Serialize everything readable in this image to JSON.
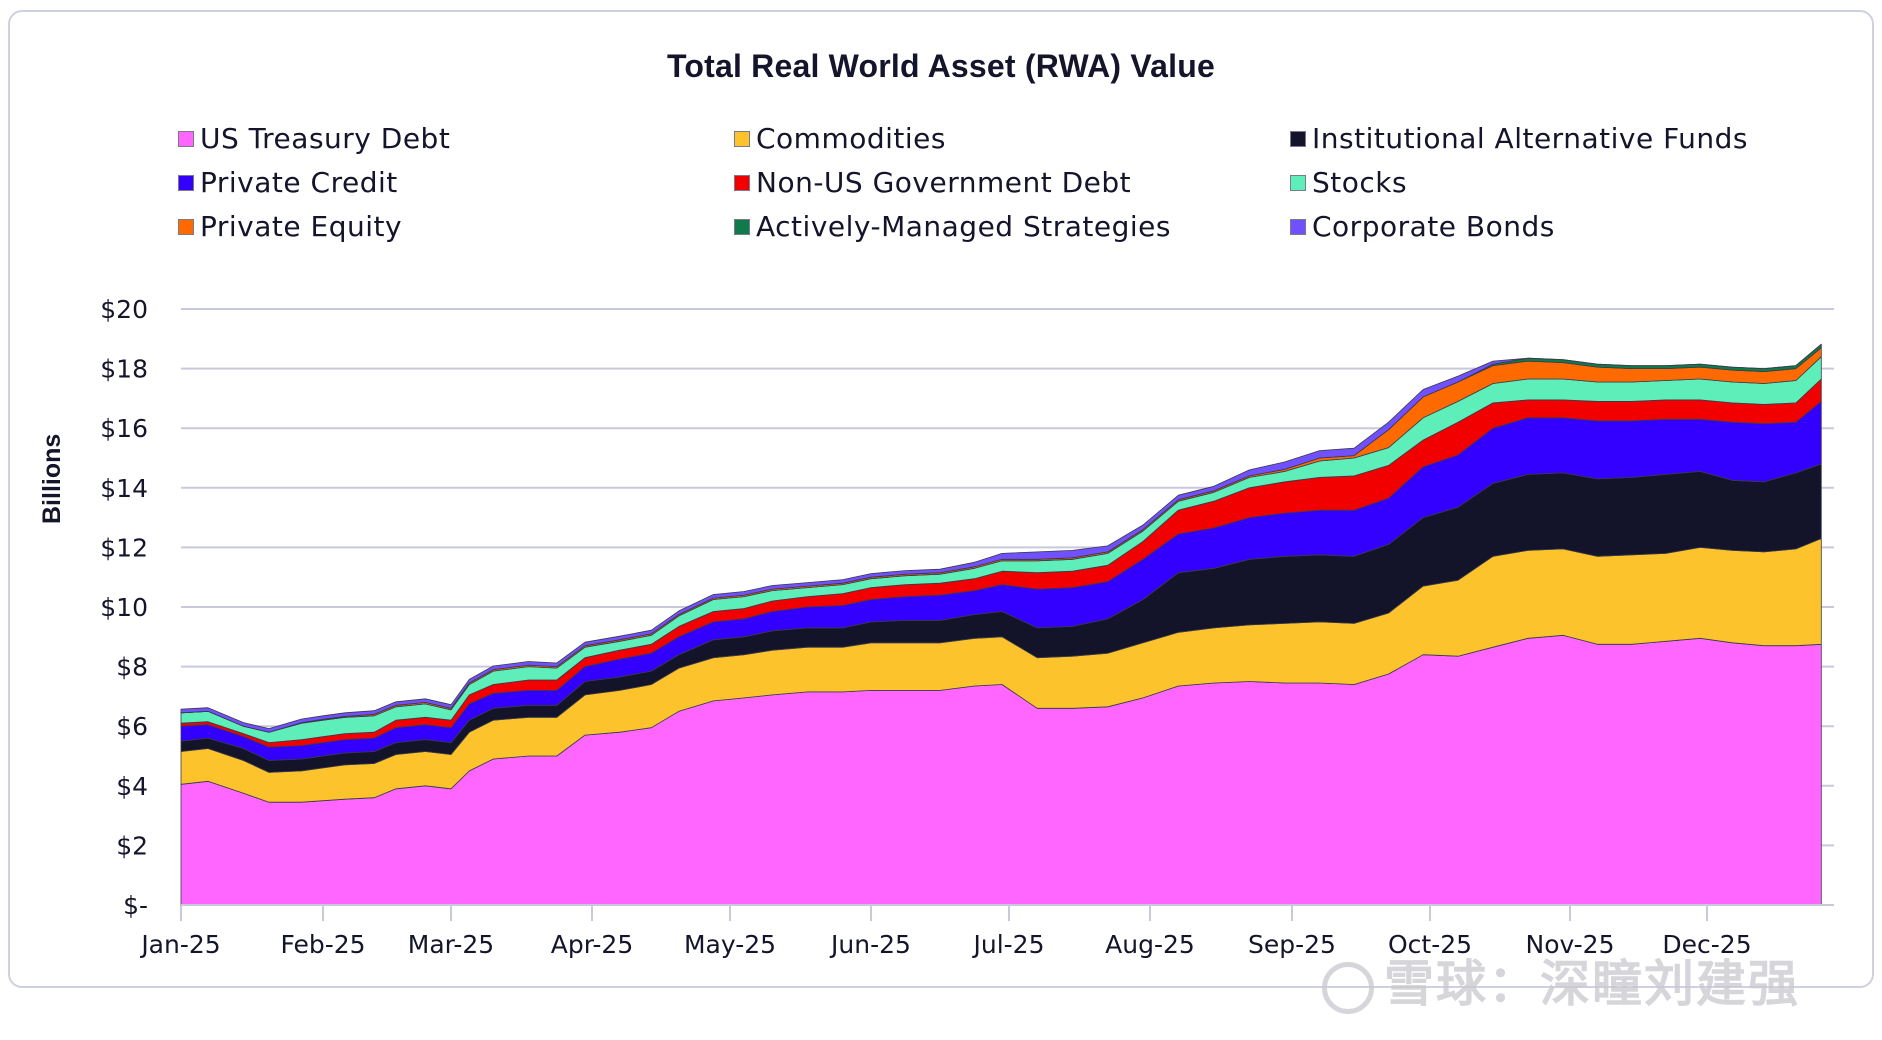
{
  "chart_data": {
    "type": "area",
    "stacked": true,
    "title": "Total Real World Asset (RWA) Value",
    "xlabel": "",
    "ylabel": "Billions",
    "ylim": [
      0,
      20
    ],
    "yticks": [
      0,
      2,
      4,
      6,
      8,
      10,
      12,
      14,
      16,
      18,
      20
    ],
    "ytick_labels": [
      "$-",
      "$2",
      "$4",
      "$6",
      "$8",
      "$10",
      "$12",
      "$14",
      "$16",
      "$18",
      "$20"
    ],
    "xticks": [
      "Jan-25",
      "Feb-25",
      "Mar-25",
      "Apr-25",
      "May-25",
      "Jun-25",
      "Jul-25",
      "Aug-25",
      "Sep-25",
      "Oct-25",
      "Nov-25",
      "Dec-25"
    ],
    "x_range_months": [
      0,
      11.9
    ],
    "grid": "horizontal",
    "legend_position": "top",
    "x": [
      0,
      0.19,
      0.44,
      0.62,
      0.85,
      1.0,
      1.17,
      1.4,
      1.57,
      1.8,
      2.0,
      2.13,
      2.3,
      2.55,
      2.75,
      2.95,
      3.2,
      3.43,
      3.63,
      3.88,
      4.1,
      4.3,
      4.55,
      4.8,
      5.0,
      5.25,
      5.5,
      5.75,
      5.95,
      6.2,
      6.45,
      6.7,
      6.95,
      7.2,
      7.45,
      7.7,
      7.95,
      8.2,
      8.45,
      8.7,
      8.95,
      9.2,
      9.45,
      9.7,
      9.95,
      10.2,
      10.45,
      10.7,
      10.95,
      11.2,
      11.45,
      11.7,
      11.9
    ],
    "series": [
      {
        "name": "US Treasury Debt",
        "color": "#ff66ff",
        "values": [
          4.05,
          4.15,
          3.75,
          3.45,
          3.45,
          3.5,
          3.55,
          3.6,
          3.9,
          4.0,
          3.9,
          4.5,
          4.9,
          5.0,
          5.0,
          5.7,
          5.8,
          5.95,
          6.5,
          6.85,
          6.95,
          7.05,
          7.15,
          7.15,
          7.2,
          7.2,
          7.2,
          7.35,
          7.4,
          6.6,
          6.6,
          6.65,
          6.95,
          7.35,
          7.45,
          7.5,
          7.45,
          7.45,
          7.4,
          7.75,
          8.4,
          8.35,
          8.65,
          8.95,
          9.05,
          8.75,
          8.75,
          8.85,
          8.95,
          8.8,
          8.7,
          8.7,
          8.75
        ]
      },
      {
        "name": "Commodities",
        "color": "#fdc32c",
        "values": [
          1.1,
          1.1,
          1.1,
          1.0,
          1.05,
          1.1,
          1.15,
          1.15,
          1.15,
          1.15,
          1.15,
          1.3,
          1.3,
          1.3,
          1.3,
          1.35,
          1.4,
          1.45,
          1.45,
          1.45,
          1.45,
          1.5,
          1.5,
          1.5,
          1.6,
          1.6,
          1.6,
          1.6,
          1.6,
          1.7,
          1.75,
          1.8,
          1.85,
          1.8,
          1.85,
          1.9,
          2.0,
          2.05,
          2.05,
          2.05,
          2.3,
          2.55,
          3.05,
          2.95,
          2.9,
          2.95,
          3.0,
          2.95,
          3.05,
          3.1,
          3.15,
          3.25,
          3.55
        ]
      },
      {
        "name": "Institutional Alternative Funds",
        "color": "#13132a",
        "values": [
          0.35,
          0.35,
          0.4,
          0.4,
          0.4,
          0.4,
          0.4,
          0.4,
          0.4,
          0.4,
          0.4,
          0.4,
          0.4,
          0.4,
          0.4,
          0.45,
          0.45,
          0.45,
          0.45,
          0.6,
          0.6,
          0.65,
          0.65,
          0.65,
          0.7,
          0.75,
          0.75,
          0.8,
          0.85,
          1.0,
          1.0,
          1.15,
          1.45,
          2.0,
          2.0,
          2.2,
          2.25,
          2.25,
          2.25,
          2.3,
          2.3,
          2.45,
          2.45,
          2.55,
          2.55,
          2.6,
          2.6,
          2.65,
          2.55,
          2.35,
          2.35,
          2.55,
          2.5
        ]
      },
      {
        "name": "Private Credit",
        "color": "#3300ff",
        "values": [
          0.5,
          0.45,
          0.4,
          0.45,
          0.45,
          0.45,
          0.45,
          0.45,
          0.5,
          0.5,
          0.5,
          0.55,
          0.5,
          0.5,
          0.5,
          0.5,
          0.6,
          0.6,
          0.6,
          0.6,
          0.6,
          0.65,
          0.7,
          0.75,
          0.75,
          0.8,
          0.85,
          0.8,
          0.9,
          1.3,
          1.3,
          1.25,
          1.35,
          1.3,
          1.35,
          1.4,
          1.45,
          1.5,
          1.55,
          1.55,
          1.7,
          1.75,
          1.85,
          1.9,
          1.85,
          1.95,
          1.9,
          1.85,
          1.75,
          1.95,
          1.95,
          1.7,
          2.1
        ]
      },
      {
        "name": "Non-US Government Debt",
        "color": "#f20000",
        "values": [
          0.1,
          0.1,
          0.1,
          0.15,
          0.2,
          0.2,
          0.2,
          0.2,
          0.25,
          0.25,
          0.25,
          0.3,
          0.3,
          0.35,
          0.35,
          0.3,
          0.3,
          0.3,
          0.35,
          0.35,
          0.35,
          0.35,
          0.35,
          0.4,
          0.4,
          0.4,
          0.4,
          0.4,
          0.45,
          0.55,
          0.55,
          0.55,
          0.6,
          0.8,
          0.9,
          1.0,
          1.05,
          1.1,
          1.15,
          1.1,
          0.9,
          1.1,
          0.85,
          0.6,
          0.6,
          0.65,
          0.65,
          0.65,
          0.65,
          0.65,
          0.65,
          0.65,
          0.75
        ]
      },
      {
        "name": "Stocks",
        "color": "#5eeeb9",
        "values": [
          0.35,
          0.35,
          0.25,
          0.35,
          0.55,
          0.55,
          0.55,
          0.55,
          0.45,
          0.45,
          0.35,
          0.35,
          0.45,
          0.45,
          0.4,
          0.35,
          0.3,
          0.3,
          0.35,
          0.4,
          0.4,
          0.35,
          0.3,
          0.3,
          0.3,
          0.3,
          0.3,
          0.35,
          0.35,
          0.4,
          0.4,
          0.4,
          0.35,
          0.3,
          0.3,
          0.35,
          0.35,
          0.55,
          0.6,
          0.6,
          0.75,
          0.7,
          0.65,
          0.7,
          0.7,
          0.65,
          0.65,
          0.65,
          0.7,
          0.7,
          0.7,
          0.75,
          0.75
        ]
      },
      {
        "name": "Private Equity",
        "color": "#ff6a00",
        "values": [
          0.0,
          0.0,
          0.0,
          0.0,
          0.02,
          0.03,
          0.03,
          0.05,
          0.05,
          0.05,
          0.05,
          0.05,
          0.05,
          0.05,
          0.05,
          0.05,
          0.05,
          0.05,
          0.05,
          0.05,
          0.05,
          0.05,
          0.05,
          0.05,
          0.05,
          0.05,
          0.05,
          0.05,
          0.05,
          0.05,
          0.05,
          0.05,
          0.05,
          0.05,
          0.05,
          0.05,
          0.07,
          0.1,
          0.08,
          0.6,
          0.7,
          0.65,
          0.6,
          0.6,
          0.55,
          0.5,
          0.45,
          0.4,
          0.4,
          0.4,
          0.4,
          0.4,
          0.3
        ]
      },
      {
        "name": "Actively-Managed Strategies",
        "color": "#0f7a4b",
        "values": [
          0.0,
          0.0,
          0.0,
          0.0,
          0.0,
          0.0,
          0.0,
          0.0,
          0.0,
          0.0,
          0.0,
          0.0,
          0.0,
          0.0,
          0.0,
          0.0,
          0.0,
          0.0,
          0.0,
          0.0,
          0.0,
          0.0,
          0.0,
          0.0,
          0.0,
          0.0,
          0.0,
          0.0,
          0.0,
          0.0,
          0.0,
          0.0,
          0.0,
          0.0,
          0.0,
          0.0,
          0.0,
          0.0,
          0.0,
          0.0,
          0.0,
          0.0,
          0.05,
          0.1,
          0.1,
          0.1,
          0.1,
          0.1,
          0.1,
          0.1,
          0.1,
          0.1,
          0.12
        ]
      },
      {
        "name": "Corporate Bonds",
        "color": "#7151ff",
        "values": [
          0.12,
          0.12,
          0.12,
          0.12,
          0.12,
          0.12,
          0.12,
          0.12,
          0.12,
          0.12,
          0.12,
          0.12,
          0.12,
          0.12,
          0.12,
          0.12,
          0.12,
          0.12,
          0.12,
          0.12,
          0.12,
          0.12,
          0.12,
          0.12,
          0.12,
          0.12,
          0.12,
          0.15,
          0.2,
          0.25,
          0.25,
          0.2,
          0.15,
          0.15,
          0.15,
          0.2,
          0.25,
          0.25,
          0.25,
          0.25,
          0.25,
          0.2,
          0.1,
          0.0,
          0.0,
          0.0,
          0.0,
          0.0,
          0.0,
          0.0,
          0.0,
          0.0,
          0.0
        ]
      }
    ]
  },
  "legend": [
    {
      "label": "US Treasury Debt",
      "color": "#ff66ff"
    },
    {
      "label": "Commodities",
      "color": "#fdc32c"
    },
    {
      "label": "Institutional Alternative Funds",
      "color": "#13132a"
    },
    {
      "label": "Private Credit",
      "color": "#3300ff"
    },
    {
      "label": "Non-US Government Debt",
      "color": "#f20000"
    },
    {
      "label": "Stocks",
      "color": "#5eeeb9"
    },
    {
      "label": "Private Equity",
      "color": "#ff6a00"
    },
    {
      "label": "Actively-Managed Strategies",
      "color": "#0f7a4b"
    },
    {
      "label": "Corporate Bonds",
      "color": "#7151ff"
    }
  ],
  "watermark": "雪球：深瞳刘建强"
}
